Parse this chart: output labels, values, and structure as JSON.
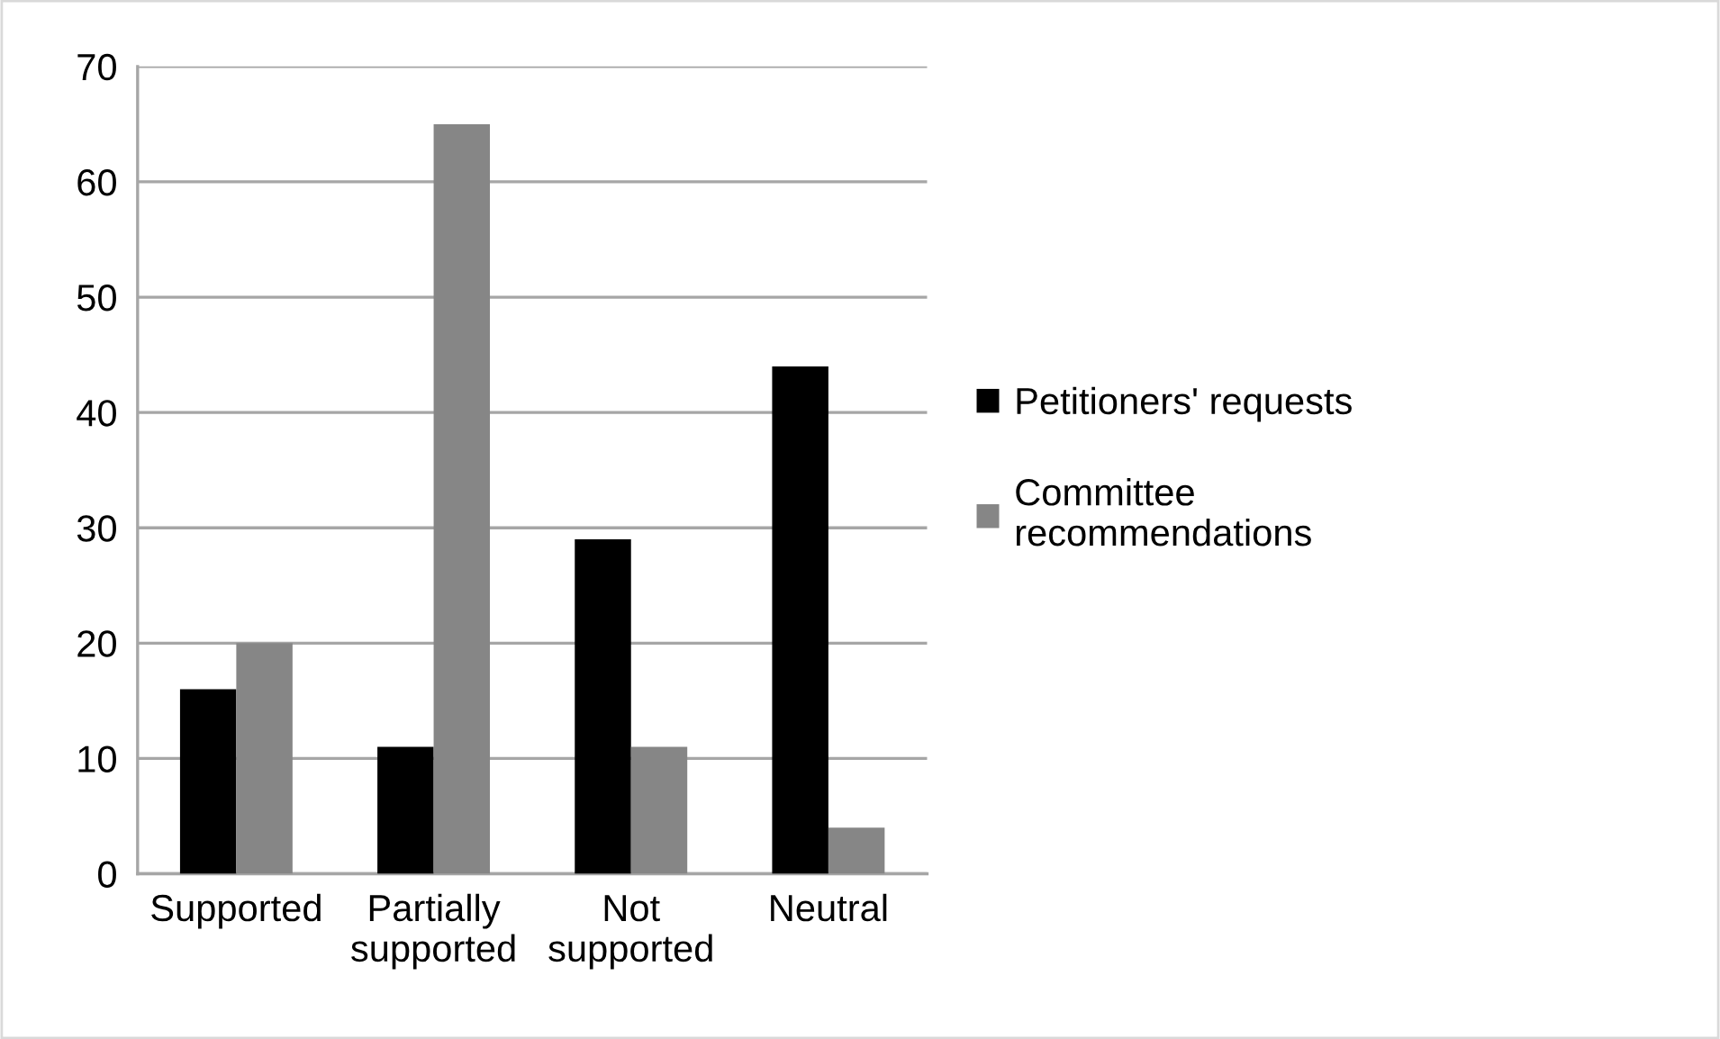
{
  "chart_data": {
    "type": "bar",
    "categories": [
      "Supported",
      "Partially\nsupported",
      "Not\nsupported",
      "Neutral"
    ],
    "series": [
      {
        "name": "Petitioners' requests",
        "color": "#000000",
        "values": [
          16,
          11,
          29,
          44
        ]
      },
      {
        "name": "Committee\nrecommendations",
        "color": "#868686",
        "values": [
          20,
          65,
          11,
          4
        ]
      }
    ],
    "ylim": [
      0,
      70
    ],
    "yticks": [
      0,
      10,
      20,
      30,
      40,
      50,
      60,
      70
    ],
    "grid": "y",
    "legend": "right"
  }
}
